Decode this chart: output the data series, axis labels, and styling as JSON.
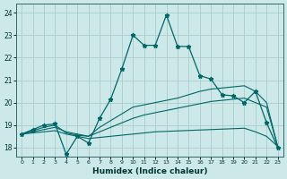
{
  "xlabel": "Humidex (Indice chaleur)",
  "bg_color": "#cce8e8",
  "grid_color": "#aacccc",
  "line_color": "#006666",
  "xlim": [
    -0.5,
    23.5
  ],
  "ylim": [
    17.6,
    24.4
  ],
  "xticks": [
    0,
    1,
    2,
    3,
    4,
    5,
    6,
    7,
    8,
    9,
    10,
    11,
    12,
    13,
    14,
    15,
    16,
    17,
    18,
    19,
    20,
    21,
    22,
    23
  ],
  "yticks": [
    18,
    19,
    20,
    21,
    22,
    23,
    24
  ],
  "line_main": {
    "x": [
      0,
      1,
      2,
      3,
      4,
      5,
      6,
      7,
      8,
      9,
      10,
      11,
      12,
      13,
      14,
      15,
      16,
      17,
      18,
      19,
      20,
      21,
      22,
      23
    ],
    "y": [
      18.6,
      18.8,
      19.0,
      19.05,
      17.7,
      18.5,
      18.2,
      19.3,
      20.15,
      21.5,
      23.0,
      22.55,
      22.55,
      23.9,
      22.5,
      22.5,
      21.2,
      21.05,
      20.35,
      20.3,
      20.0,
      20.5,
      19.1,
      18.0
    ]
  },
  "line_upper": {
    "x": [
      0,
      1,
      2,
      3,
      4,
      5,
      6,
      7,
      8,
      9,
      10,
      11,
      12,
      13,
      14,
      15,
      16,
      17,
      18,
      19,
      20,
      21,
      22,
      23
    ],
    "y": [
      18.6,
      18.75,
      18.9,
      19.0,
      18.65,
      18.55,
      18.5,
      18.9,
      19.2,
      19.5,
      19.8,
      19.9,
      20.0,
      20.1,
      20.2,
      20.35,
      20.5,
      20.6,
      20.65,
      20.7,
      20.75,
      20.5,
      20.0,
      18.05
    ]
  },
  "line_mid": {
    "x": [
      0,
      1,
      2,
      3,
      4,
      5,
      6,
      7,
      8,
      9,
      10,
      11,
      12,
      13,
      14,
      15,
      16,
      17,
      18,
      19,
      20,
      21,
      22,
      23
    ],
    "y": [
      18.6,
      18.7,
      18.8,
      18.9,
      18.7,
      18.6,
      18.5,
      18.7,
      18.9,
      19.1,
      19.3,
      19.45,
      19.55,
      19.65,
      19.75,
      19.85,
      19.95,
      20.05,
      20.1,
      20.15,
      20.2,
      20.0,
      19.8,
      18.05
    ]
  },
  "line_lower": {
    "x": [
      0,
      1,
      2,
      3,
      4,
      5,
      6,
      7,
      8,
      9,
      10,
      11,
      12,
      13,
      14,
      15,
      16,
      17,
      18,
      19,
      20,
      21,
      22,
      23
    ],
    "y": [
      18.6,
      18.65,
      18.7,
      18.75,
      18.6,
      18.5,
      18.4,
      18.45,
      18.5,
      18.55,
      18.6,
      18.65,
      18.7,
      18.72,
      18.74,
      18.76,
      18.78,
      18.8,
      18.82,
      18.84,
      18.86,
      18.7,
      18.5,
      18.05
    ]
  }
}
